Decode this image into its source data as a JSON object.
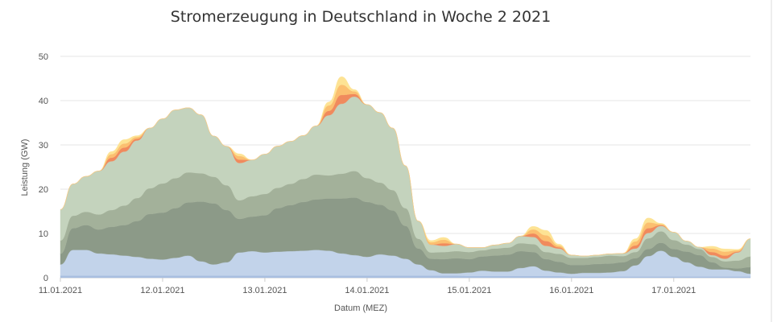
{
  "chart_data": {
    "type": "area",
    "title": "Stromerzeugung in Deutschland in Woche 2 2021",
    "xlabel": "Datum (MEZ)",
    "ylabel": "Leistung (GW)",
    "ylim": [
      0,
      50
    ],
    "yticks": [
      0,
      10,
      20,
      30,
      40,
      50
    ],
    "xlim": [
      "2021-01-11T00:00",
      "2021-01-17T18:00"
    ],
    "xticks": [
      "11.01.2021",
      "12.01.2021",
      "13.01.2021",
      "14.01.2021",
      "15.01.2021",
      "16.01.2021",
      "17.01.2021"
    ],
    "grid": true,
    "legend": "none",
    "stacked": true,
    "x": [
      "2021-01-11T00:00",
      "2021-01-11T03:00",
      "2021-01-11T06:00",
      "2021-01-11T09:00",
      "2021-01-11T12:00",
      "2021-01-11T15:00",
      "2021-01-11T18:00",
      "2021-01-11T21:00",
      "2021-01-12T00:00",
      "2021-01-12T03:00",
      "2021-01-12T06:00",
      "2021-01-12T09:00",
      "2021-01-12T12:00",
      "2021-01-12T15:00",
      "2021-01-12T18:00",
      "2021-01-12T21:00",
      "2021-01-13T00:00",
      "2021-01-13T03:00",
      "2021-01-13T06:00",
      "2021-01-13T09:00",
      "2021-01-13T12:00",
      "2021-01-13T15:00",
      "2021-01-13T18:00",
      "2021-01-13T21:00",
      "2021-01-14T00:00",
      "2021-01-14T03:00",
      "2021-01-14T06:00",
      "2021-01-14T09:00",
      "2021-01-14T12:00",
      "2021-01-14T15:00",
      "2021-01-14T18:00",
      "2021-01-14T21:00",
      "2021-01-15T00:00",
      "2021-01-15T03:00",
      "2021-01-15T06:00",
      "2021-01-15T09:00",
      "2021-01-15T12:00",
      "2021-01-15T15:00",
      "2021-01-15T18:00",
      "2021-01-15T21:00",
      "2021-01-16T00:00",
      "2021-01-16T03:00",
      "2021-01-16T06:00",
      "2021-01-16T09:00",
      "2021-01-16T12:00",
      "2021-01-16T15:00",
      "2021-01-16T18:00",
      "2021-01-16T21:00",
      "2021-01-17T00:00",
      "2021-01-17T03:00",
      "2021-01-17T06:00",
      "2021-01-17T09:00",
      "2021-01-17T12:00",
      "2021-01-17T15:00",
      "2021-01-17T18:00"
    ],
    "series": [
      {
        "color": "#a9bfe0",
        "values": [
          0.5,
          0.5,
          0.5,
          0.5,
          0.5,
          0.5,
          0.5,
          0.5,
          0.5,
          0.5,
          0.5,
          0.5,
          0.5,
          0.5,
          0.5,
          0.5,
          0.5,
          0.5,
          0.5,
          0.5,
          0.5,
          0.5,
          0.5,
          0.5,
          0.5,
          0.5,
          0.5,
          0.5,
          0.5,
          0.5,
          0.5,
          0.5,
          0.4,
          0.4,
          0.4,
          0.4,
          0.4,
          0.4,
          0.4,
          0.4,
          0.3,
          0.3,
          0.3,
          0.3,
          0.3,
          0.3,
          0.3,
          0.3,
          0.3,
          0.3,
          0.3,
          0.3,
          0.3,
          0.3,
          0.3
        ]
      },
      {
        "color": "#c2d3ea",
        "values": [
          2.5,
          5.8,
          5.8,
          5.0,
          4.8,
          4.5,
          4.2,
          3.8,
          3.6,
          4.0,
          4.5,
          3.2,
          2.5,
          3.0,
          5.2,
          5.5,
          5.2,
          5.4,
          5.5,
          5.6,
          5.8,
          5.6,
          5.0,
          4.6,
          4.2,
          4.8,
          4.5,
          3.8,
          2.5,
          1.2,
          0.5,
          0.5,
          0.8,
          1.2,
          1.0,
          1.0,
          1.8,
          2.2,
          1.2,
          0.8,
          0.6,
          0.8,
          0.8,
          0.9,
          1.2,
          2.5,
          4.6,
          5.8,
          4.4,
          3.2,
          2.2,
          1.6,
          1.6,
          1.2,
          0.6
        ]
      },
      {
        "color": "#8c9a88",
        "values": [
          2.4,
          4.9,
          5.6,
          5.4,
          6.2,
          6.9,
          8.1,
          10.1,
          10.6,
          11.2,
          12.0,
          13.5,
          13.8,
          11.8,
          7.6,
          7.8,
          8.4,
          9.8,
          10.4,
          11.0,
          11.4,
          11.8,
          12.4,
          13.0,
          12.4,
          11.2,
          10.2,
          7.4,
          3.6,
          2.6,
          3.2,
          3.4,
          3.0,
          3.2,
          3.6,
          3.8,
          3.8,
          3.2,
          2.6,
          2.4,
          2.0,
          1.8,
          2.0,
          2.0,
          2.0,
          1.6,
          1.6,
          1.8,
          1.8,
          2.4,
          2.6,
          1.6,
          0.4,
          0.6,
          1.5
        ]
      },
      {
        "color": "#a3b19a",
        "values": [
          3.0,
          2.8,
          3.0,
          3.4,
          3.8,
          4.4,
          5.2,
          5.8,
          6.6,
          6.8,
          6.8,
          6.4,
          6.0,
          5.6,
          4.2,
          4.6,
          4.8,
          4.6,
          4.8,
          5.2,
          5.6,
          5.2,
          5.6,
          6.0,
          5.4,
          5.0,
          4.6,
          4.0,
          2.2,
          1.4,
          1.6,
          1.6,
          1.6,
          1.4,
          1.6,
          1.6,
          1.8,
          1.8,
          1.6,
          1.8,
          1.6,
          1.6,
          1.6,
          1.8,
          1.4,
          1.4,
          2.4,
          2.6,
          2.0,
          1.6,
          1.4,
          1.2,
          1.4,
          1.8,
          2.4
        ]
      },
      {
        "color": "#c4d3bd",
        "values": [
          7.0,
          7.2,
          8.0,
          9.8,
          11.0,
          12.2,
          13.0,
          13.6,
          14.6,
          15.4,
          14.6,
          13.2,
          9.2,
          8.8,
          8.4,
          8.2,
          9.0,
          9.4,
          9.6,
          9.8,
          11.0,
          13.6,
          15.8,
          16.8,
          16.6,
          15.8,
          14.0,
          9.6,
          4.0,
          1.8,
          1.4,
          1.6,
          1.0,
          0.6,
          0.8,
          1.0,
          1.6,
          1.6,
          1.4,
          1.2,
          0.6,
          0.4,
          0.4,
          0.4,
          0.6,
          0.8,
          1.2,
          1.2,
          1.8,
          0.8,
          0.4,
          0.4,
          0.6,
          1.8,
          4.0
        ]
      },
      {
        "color": "#f08a5d",
        "values": [
          0,
          0,
          0,
          0,
          0.8,
          0.9,
          0.4,
          0,
          0,
          0,
          0,
          0,
          0,
          0,
          0.8,
          0,
          0,
          0,
          0,
          0,
          0,
          1.0,
          2.0,
          0.6,
          0,
          0,
          0,
          0,
          0,
          0,
          0.6,
          0,
          0,
          0,
          0,
          0,
          0,
          0.8,
          1.1,
          0.3,
          0,
          0,
          0,
          0,
          0,
          0.7,
          1.1,
          0.2,
          0,
          0,
          0,
          0.7,
          0.7,
          0.2,
          0
        ]
      },
      {
        "color": "#fbbf70",
        "values": [
          0,
          0,
          0,
          0,
          0.8,
          0.9,
          0.4,
          0,
          0,
          0,
          0,
          0,
          0,
          0,
          0.8,
          0,
          0,
          0,
          0,
          0,
          0,
          1.2,
          2.3,
          0.6,
          0,
          0,
          0,
          0,
          0,
          0.5,
          0.8,
          0,
          0,
          0,
          0,
          0,
          0,
          0.9,
          1.3,
          0.4,
          0,
          0,
          0,
          0,
          0,
          0.9,
          1.3,
          0.2,
          0,
          0,
          0,
          0.8,
          0.9,
          0.3,
          0
        ]
      },
      {
        "color": "#fde394",
        "values": [
          0,
          0,
          0,
          0,
          0.6,
          0.9,
          0.3,
          0,
          0,
          0,
          0,
          0,
          0,
          0,
          0.5,
          0,
          0,
          0,
          0,
          0,
          0,
          0.8,
          1.8,
          0.4,
          0,
          0,
          0,
          0,
          0,
          0.4,
          0.5,
          0,
          0,
          0,
          0,
          0,
          0,
          0.7,
          1.1,
          0.3,
          0,
          0,
          0,
          0,
          0,
          0.6,
          1.0,
          0.2,
          0,
          0,
          0,
          0.5,
          0.6,
          0.2,
          0
        ]
      }
    ]
  }
}
